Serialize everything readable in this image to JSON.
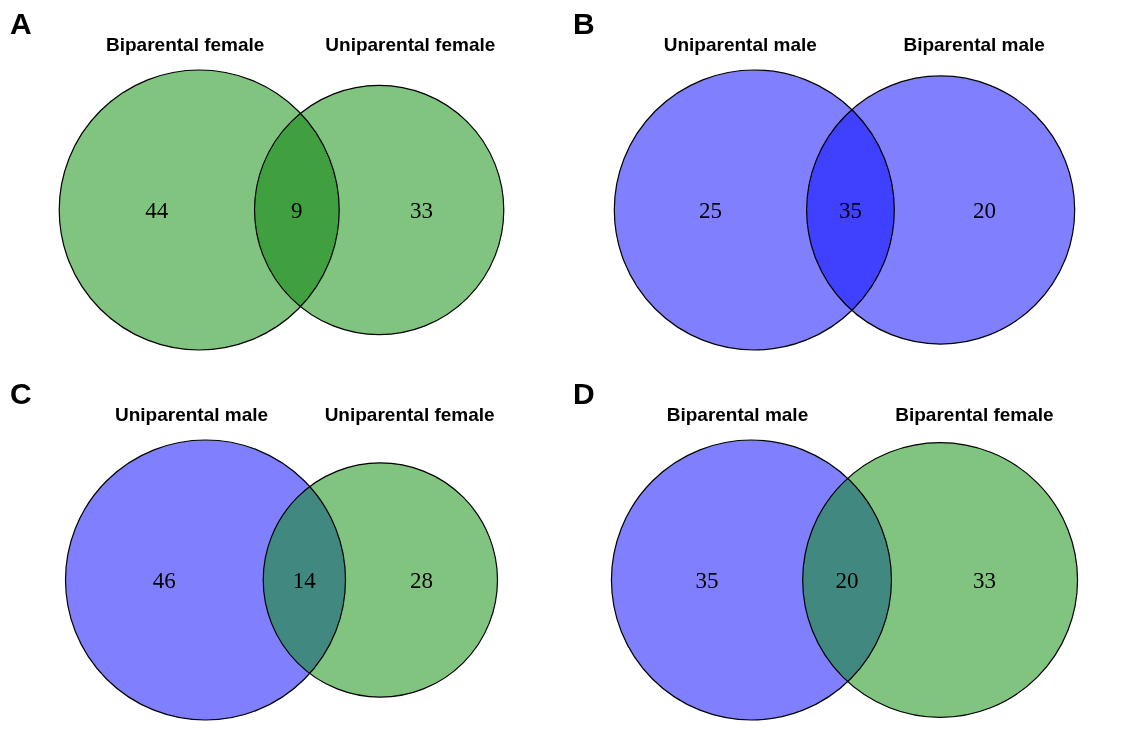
{
  "chart_data": [
    {
      "type": "other",
      "title": "A",
      "categories": [
        "Biparental female",
        null,
        "Uniparental female"
      ],
      "values": [
        44,
        9,
        33
      ],
      "colors": [
        "#80c480",
        "#40a040",
        "#80c480"
      ],
      "data_labels": true
    },
    {
      "type": "other",
      "title": "B",
      "categories": [
        "Uniparental male",
        null,
        "Biparental male"
      ],
      "values": [
        25,
        35,
        20
      ],
      "colors": [
        "#8080ff",
        "#4040ff",
        "#8080ff"
      ],
      "data_labels": true
    },
    {
      "type": "other",
      "title": "C",
      "categories": [
        "Uniparental male",
        null,
        "Uniparental female"
      ],
      "values": [
        46,
        14,
        28
      ],
      "colors": [
        "#8080ff",
        "#408880",
        "#80c480"
      ],
      "data_labels": true
    },
    {
      "type": "other",
      "title": "D",
      "categories": [
        "Biparental male",
        null,
        "Biparental female"
      ],
      "values": [
        35,
        20,
        33
      ],
      "colors": [
        "#8080ff",
        "#408880",
        "#80c480"
      ],
      "data_labels": true
    }
  ]
}
